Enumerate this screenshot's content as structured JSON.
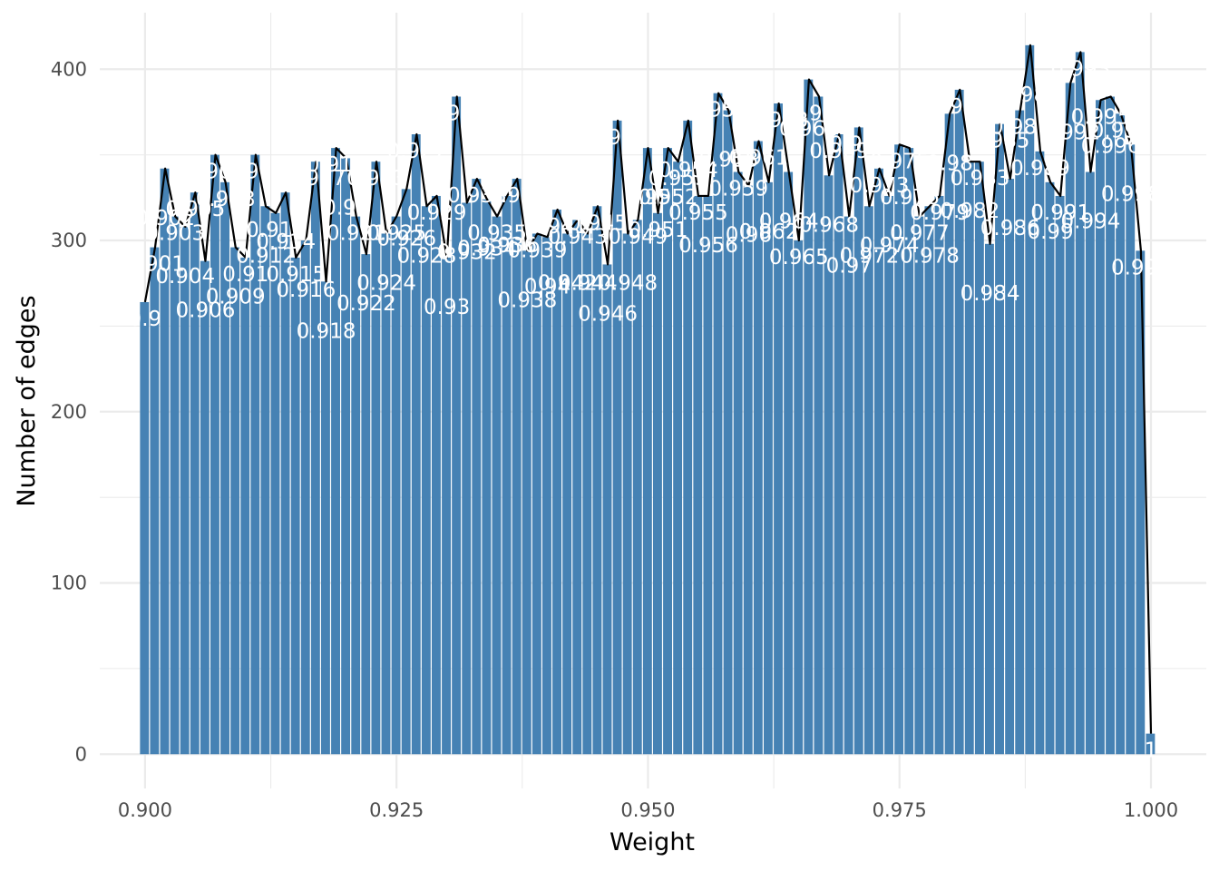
{
  "chart_data": {
    "type": "bar",
    "xlabel": "Weight",
    "ylabel": "Number of edges",
    "xlim": [
      0.8955,
      1.0055
    ],
    "ylim": [
      -20,
      433
    ],
    "x_ticks": [
      0.9,
      0.925,
      0.95,
      0.975,
      1.0
    ],
    "x_tick_labels": [
      "0.900",
      "0.925",
      "0.950",
      "0.975",
      "1.000"
    ],
    "y_ticks": [
      0,
      100,
      200,
      300,
      400
    ],
    "y_tick_labels": [
      "0",
      "100",
      "200",
      "300",
      "400"
    ],
    "grid": true,
    "bin_start": 0.9,
    "bin_width": 0.001,
    "bar_color": "#4682B4",
    "line_color": "#000000",
    "values": [
      264,
      296,
      342,
      314,
      308,
      328,
      288,
      350,
      334,
      296,
      290,
      350,
      320,
      316,
      328,
      290,
      300,
      346,
      276,
      354,
      348,
      314,
      292,
      346,
      304,
      314,
      330,
      362,
      320,
      326,
      290,
      384,
      322,
      336,
      324,
      314,
      326,
      336,
      294,
      304,
      302,
      318,
      304,
      312,
      304,
      320,
      286,
      370,
      304,
      312,
      354,
      316,
      354,
      346,
      370,
      326,
      326,
      386,
      376,
      340,
      332,
      358,
      334,
      380,
      340,
      300,
      394,
      384,
      338,
      362,
      314,
      366,
      320,
      342,
      326,
      356,
      354,
      314,
      320,
      326,
      374,
      388,
      346,
      346,
      298,
      368,
      336,
      376,
      414,
      352,
      334,
      326,
      392,
      410,
      340,
      382,
      384,
      374,
      356,
      294,
      12
    ],
    "labels": [
      "0.9",
      "0.901",
      "0.902",
      "0.903",
      "0.904",
      "0.905",
      "0.906",
      "0.907",
      "0.908",
      "0.909",
      "0.91",
      "0.911",
      "0.912",
      "0.913",
      "0.914",
      "0.915",
      "0.916",
      "0.917",
      "0.918",
      "0.919",
      "0.92",
      "0.921",
      "0.922",
      "0.923",
      "0.924",
      "0.925",
      "0.926",
      "0.927",
      "0.928",
      "0.929",
      "0.93",
      "0.931",
      "0.932",
      "0.933",
      "0.934",
      "0.935",
      "0.936",
      "0.937",
      "0.938",
      "0.939",
      "0.94",
      "0.941",
      "0.942",
      "0.943",
      "0.944",
      "0.945",
      "0.946",
      "0.947",
      "0.948",
      "0.949",
      "0.95",
      "0.951",
      "0.952",
      "0.953",
      "0.954",
      "0.955",
      "0.956",
      "0.957",
      "0.958",
      "0.959",
      "0.96",
      "0.961",
      "0.962",
      "0.963",
      "0.964",
      "0.965",
      "0.966",
      "0.967",
      "0.968",
      "0.969",
      "0.97",
      "0.971",
      "0.972",
      "0.973",
      "0.974",
      "0.975",
      "0.976",
      "0.977",
      "0.978",
      "0.979",
      "0.98",
      "0.981",
      "0.982",
      "0.983",
      "0.984",
      "0.985",
      "0.986",
      "0.987",
      "0.988",
      "0.989",
      "0.99",
      "0.991",
      "0.992",
      "0.993",
      "0.994",
      "0.995",
      "0.996",
      "0.997",
      "0.998",
      "0.999",
      "1"
    ],
    "label_offsets": [
      -1,
      -1,
      1,
      -1,
      1,
      -1,
      1,
      -1,
      -1,
      1,
      -1,
      -1,
      1,
      -1,
      1,
      -1,
      1,
      -1,
      1,
      -1,
      1,
      -1,
      1,
      -1,
      1,
      -1,
      1,
      -1,
      1,
      -1,
      1,
      -1,
      1,
      -1,
      1,
      -1,
      1,
      -1,
      1,
      -1,
      1,
      -1,
      1,
      -1,
      1,
      -1,
      1,
      -1,
      1,
      -1,
      1,
      -1,
      1,
      -1,
      1,
      -1,
      1,
      -1,
      1,
      -1,
      1,
      -1,
      1,
      -1,
      1,
      -1,
      1,
      -1,
      1,
      -1,
      1,
      -1,
      1,
      -1,
      1,
      -1,
      1,
      -1,
      1,
      -1,
      1,
      -1,
      1,
      -1,
      1,
      -1,
      1,
      -1,
      1,
      -1,
      1,
      -1,
      1,
      -1,
      1,
      -1,
      1,
      -1,
      1,
      -1,
      -1
    ]
  }
}
